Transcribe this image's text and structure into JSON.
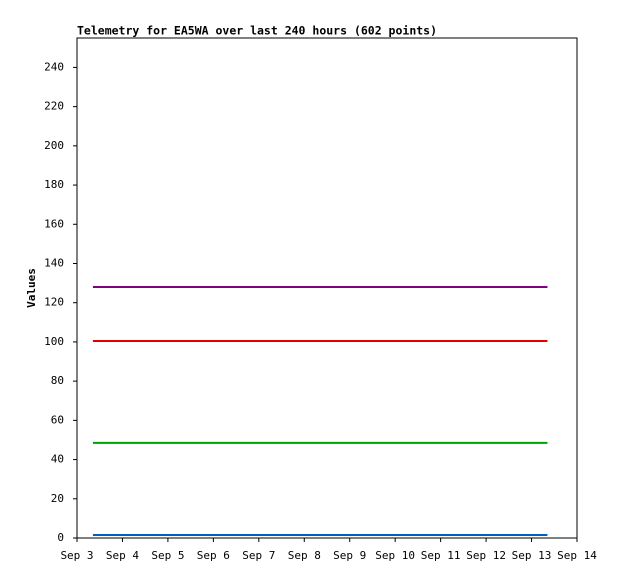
{
  "chart_data": {
    "type": "line",
    "title": "Telemetry for EA5WA over last 240 hours (602 points)",
    "y_label": "Values",
    "xlim": [
      3,
      14
    ],
    "xticks": [
      {
        "value": 3,
        "label": "Sep 3"
      },
      {
        "value": 4,
        "label": "Sep 4"
      },
      {
        "value": 5,
        "label": "Sep 5"
      },
      {
        "value": 6,
        "label": "Sep 6"
      },
      {
        "value": 7,
        "label": "Sep 7"
      },
      {
        "value": 8,
        "label": "Sep 8"
      },
      {
        "value": 9,
        "label": "Sep 9"
      },
      {
        "value": 10,
        "label": "Sep 10"
      },
      {
        "value": 11,
        "label": "Sep 11"
      },
      {
        "value": 12,
        "label": "Sep 12"
      },
      {
        "value": 13,
        "label": "Sep 13"
      },
      {
        "value": 14,
        "label": "Sep 14"
      }
    ],
    "ylim": [
      0,
      255
    ],
    "yticks": [
      0,
      20,
      40,
      60,
      80,
      100,
      120,
      140,
      160,
      180,
      200,
      220,
      240
    ],
    "series": [
      {
        "color": "#800080",
        "x": [
          3.35,
          13.35
        ],
        "values": [
          128,
          128
        ]
      },
      {
        "color": "#e00000",
        "x": [
          3.35,
          13.35
        ],
        "values": [
          100.5,
          100.5
        ]
      },
      {
        "color": "#00a000",
        "x": [
          3.35,
          13.35
        ],
        "values": [
          48.5,
          48.5
        ]
      },
      {
        "color": "#0060c0",
        "x": [
          3.35,
          13.35
        ],
        "values": [
          1.5,
          1.5
        ]
      }
    ]
  }
}
